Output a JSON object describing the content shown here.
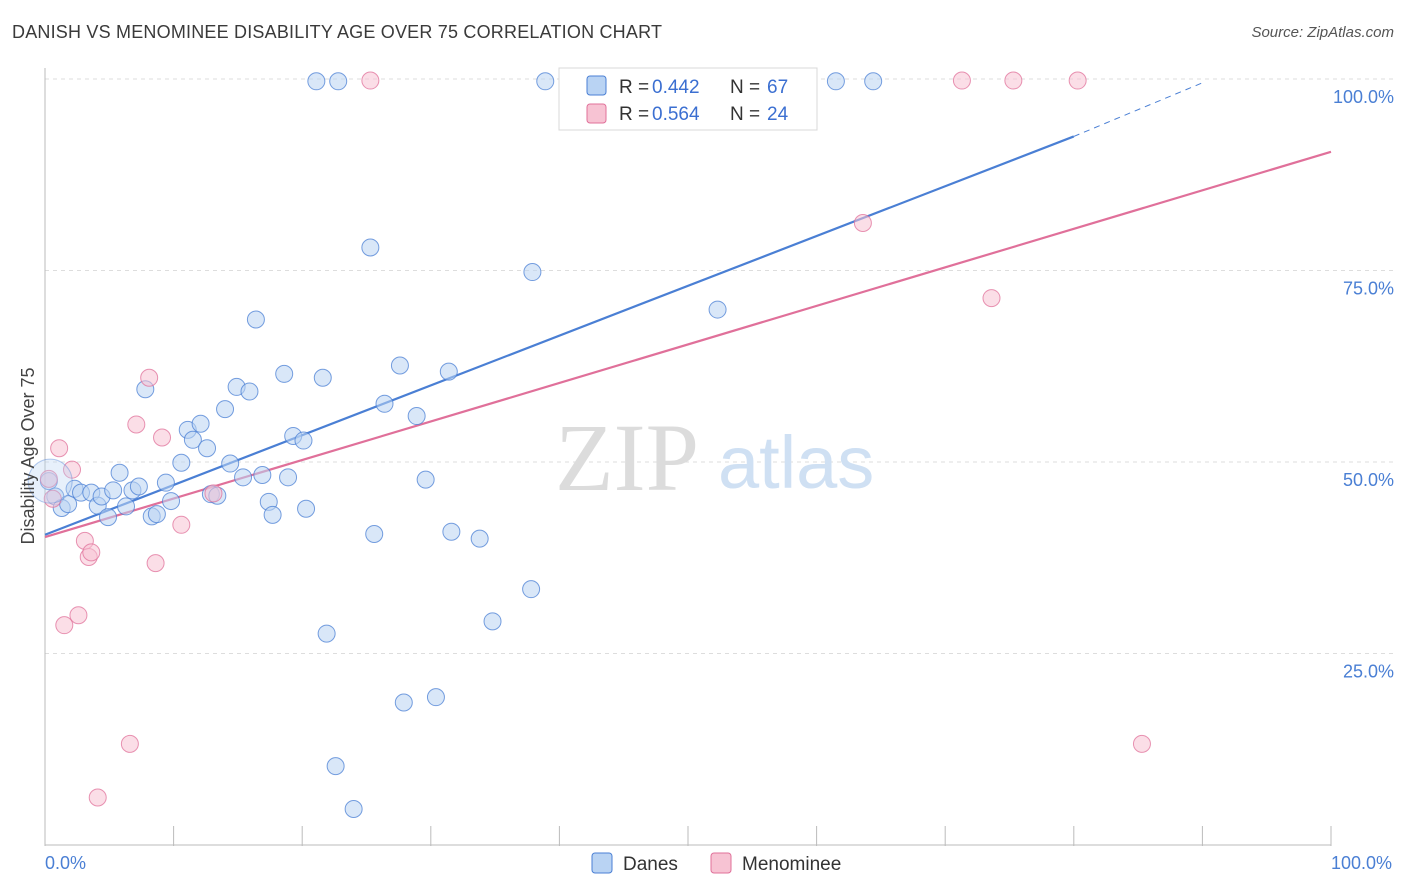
{
  "title": "DANISH VS MENOMINEE DISABILITY AGE OVER 75 CORRELATION CHART",
  "source": "Source: ZipAtlas.com",
  "watermark": {
    "zip": "ZIP",
    "atlas": "atlas"
  },
  "colors": {
    "danes": "#4a7fd4",
    "menominee": "#e0709a",
    "danes_fill": "#b9d3f3",
    "menominee_fill": "#f7c3d3"
  },
  "stats_legend": [
    {
      "r_label": "R = ",
      "r_value": "0.442",
      "n_label": "N = ",
      "n_value": "67"
    },
    {
      "r_label": "R = ",
      "r_value": "0.564",
      "n_label": "N = ",
      "n_value": "24"
    }
  ],
  "chart_data": {
    "type": "scatter",
    "title": "DANISH VS MENOMINEE DISABILITY AGE OVER 75 CORRELATION CHART",
    "xlabel": "",
    "ylabel": "Disability Age Over 75",
    "xlim": [
      0,
      100
    ],
    "ylim": [
      0,
      100
    ],
    "x_ticks": [
      "0.0%",
      "100.0%"
    ],
    "y_ticks": [
      {
        "value": 100,
        "label": "100.0%"
      },
      {
        "value": 75,
        "label": "75.0%"
      },
      {
        "value": 50,
        "label": "50.0%"
      },
      {
        "value": 25,
        "label": "25.0%"
      }
    ],
    "legend_position": "bottom",
    "grid": true,
    "series": [
      {
        "name": "Danes",
        "color": "#4a7fd4",
        "trend": {
          "x0": 0,
          "y0": 40.5,
          "x1": 80,
          "y1": 92.5,
          "dashed_to_x": 90,
          "dashed_to_y": 99.5
        },
        "points": [
          [
            0.3,
            47.5
          ],
          [
            0.8,
            45.5
          ],
          [
            1.3,
            44
          ],
          [
            1.8,
            44.5
          ],
          [
            2.3,
            46.5
          ],
          [
            2.8,
            46
          ],
          [
            3.6,
            46
          ],
          [
            4.1,
            44.3
          ],
          [
            4.4,
            45.5
          ],
          [
            4.9,
            42.8
          ],
          [
            5.3,
            46.3
          ],
          [
            5.8,
            48.6
          ],
          [
            6.3,
            44.2
          ],
          [
            6.8,
            46.3
          ],
          [
            7.3,
            46.8
          ],
          [
            7.8,
            59.5
          ],
          [
            8.3,
            42.9
          ],
          [
            8.7,
            43.2
          ],
          [
            9.4,
            47.3
          ],
          [
            9.8,
            44.9
          ],
          [
            10.6,
            49.9
          ],
          [
            11.1,
            54.2
          ],
          [
            11.5,
            52.9
          ],
          [
            12.1,
            55
          ],
          [
            12.6,
            51.8
          ],
          [
            12.9,
            45.8
          ],
          [
            13.4,
            45.6
          ],
          [
            14.0,
            56.9
          ],
          [
            14.4,
            49.8
          ],
          [
            14.9,
            59.8
          ],
          [
            15.4,
            48
          ],
          [
            15.9,
            59.2
          ],
          [
            16.4,
            68.6
          ],
          [
            16.9,
            48.3
          ],
          [
            17.4,
            44.8
          ],
          [
            17.7,
            43.1
          ],
          [
            18.6,
            61.5
          ],
          [
            18.9,
            48
          ],
          [
            19.3,
            53.4
          ],
          [
            20.1,
            52.8
          ],
          [
            20.3,
            43.9
          ],
          [
            21.6,
            61
          ],
          [
            21.1,
            99.7
          ],
          [
            21.9,
            27.6
          ],
          [
            22.8,
            99.7
          ],
          [
            22.6,
            10.3
          ],
          [
            24.0,
            4.7
          ],
          [
            25.3,
            78
          ],
          [
            25.6,
            40.6
          ],
          [
            26.4,
            57.6
          ],
          [
            27.6,
            62.6
          ],
          [
            27.9,
            18.6
          ],
          [
            28.9,
            56
          ],
          [
            29.6,
            47.7
          ],
          [
            30.4,
            19.3
          ],
          [
            31.4,
            61.8
          ],
          [
            31.6,
            40.9
          ],
          [
            33.8,
            40
          ],
          [
            34.8,
            29.2
          ],
          [
            37.8,
            33.4
          ],
          [
            37.9,
            74.8
          ],
          [
            38.9,
            99.7
          ],
          [
            47.8,
            99.7
          ],
          [
            49.4,
            99.7
          ],
          [
            52.3,
            69.9
          ],
          [
            61.5,
            99.7
          ],
          [
            64.4,
            99.7
          ]
        ]
      },
      {
        "name": "Menominee",
        "color": "#e0709a",
        "trend": {
          "x0": 0,
          "y0": 40.2,
          "x1": 100,
          "y1": 90.5
        },
        "points": [
          [
            0.3,
            47.8
          ],
          [
            0.6,
            45.2
          ],
          [
            1.1,
            51.8
          ],
          [
            1.5,
            28.7
          ],
          [
            2.1,
            49
          ],
          [
            2.6,
            30
          ],
          [
            3.1,
            39.7
          ],
          [
            3.4,
            37.6
          ],
          [
            3.6,
            38.2
          ],
          [
            4.1,
            6.2
          ],
          [
            6.6,
            13.2
          ],
          [
            7.1,
            54.9
          ],
          [
            8.1,
            61
          ],
          [
            8.6,
            36.8
          ],
          [
            9.1,
            53.2
          ],
          [
            10.6,
            41.8
          ],
          [
            13.1,
            45.9
          ],
          [
            25.3,
            99.8
          ],
          [
            63.6,
            81.2
          ],
          [
            71.3,
            99.8
          ],
          [
            73.6,
            71.4
          ],
          [
            75.3,
            99.8
          ],
          [
            80.3,
            99.8
          ],
          [
            85.3,
            13.2
          ]
        ]
      }
    ]
  }
}
